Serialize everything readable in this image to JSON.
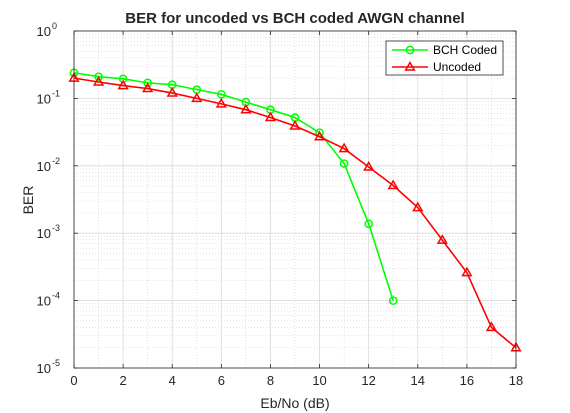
{
  "chart_data": {
    "type": "line",
    "title": "BER for uncoded vs BCH coded AWGN channel",
    "xlabel": "Eb/No (dB)",
    "ylabel": "BER",
    "xlim": [
      0,
      18
    ],
    "ylim": [
      1e-05,
      1
    ],
    "y_scale": "log",
    "grid": true,
    "minor_grid": true,
    "legend_position": "top-right",
    "x_ticks": [
      0,
      2,
      4,
      6,
      8,
      10,
      12,
      14,
      16,
      18
    ],
    "x_tick_labels": [
      "0",
      "2",
      "4",
      "6",
      "8",
      "10",
      "12",
      "14",
      "16",
      "18"
    ],
    "y_ticks": [
      1e-05,
      0.0001,
      0.001,
      0.01,
      0.1,
      1
    ],
    "y_tick_labels": [
      {
        "base": "10",
        "exp": "-5"
      },
      {
        "base": "10",
        "exp": "-4"
      },
      {
        "base": "10",
        "exp": "-3"
      },
      {
        "base": "10",
        "exp": "-2"
      },
      {
        "base": "10",
        "exp": "-1"
      },
      {
        "base": "10",
        "exp": "0"
      }
    ],
    "series": [
      {
        "name": "BCH Coded",
        "color": "#00ff00",
        "marker": "circle",
        "x": [
          0,
          1,
          2,
          3,
          4,
          5,
          6,
          7,
          8,
          9,
          10,
          11,
          12,
          13
        ],
        "y": [
          0.24,
          0.21,
          0.195,
          0.17,
          0.16,
          0.135,
          0.115,
          0.088,
          0.068,
          0.052,
          0.031,
          0.0108,
          0.00138,
          0.0001
        ]
      },
      {
        "name": "Uncoded",
        "color": "#ff0000",
        "marker": "triangle",
        "x": [
          0,
          1,
          2,
          3,
          4,
          5,
          6,
          7,
          8,
          9,
          10,
          11,
          12,
          13,
          14,
          15,
          16,
          17,
          18
        ],
        "y": [
          0.2,
          0.175,
          0.155,
          0.14,
          0.12,
          0.1,
          0.083,
          0.068,
          0.052,
          0.039,
          0.027,
          0.018,
          0.0096,
          0.0051,
          0.0024,
          0.00079,
          0.00026,
          4e-05,
          2e-05
        ]
      }
    ]
  }
}
